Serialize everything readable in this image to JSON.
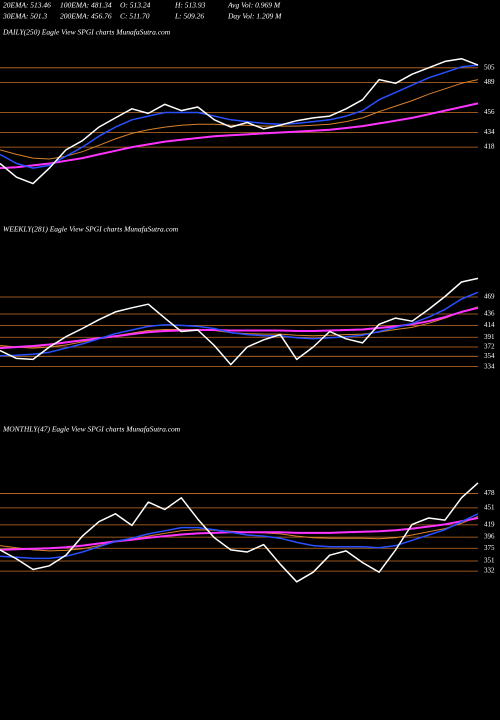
{
  "chart_data": [
    {
      "type": "line",
      "title": "DAILY(250) Eagle View SPGI charts MunafaSutra.com",
      "annotations": [
        "20EMA: 513.46",
        "100EMA: 481.34",
        "O: 513.24",
        "H: 513.93",
        "Avg Vol: 0.969 M",
        "30EMA: 501.3",
        "200EMA: 456.76",
        "C: 511.70",
        "L: 509.26",
        "Day Vol: 1.209 M"
      ],
      "ylim": [
        360,
        530
      ],
      "yticks": [
        505,
        489,
        456,
        434,
        418
      ],
      "grid": true,
      "grid_color": "#c8702a",
      "series": [
        {
          "color": "#d9822b",
          "values": [
            415,
            410,
            406,
            405,
            408,
            413,
            420,
            427,
            433,
            437,
            440,
            442,
            443,
            443,
            442,
            442,
            441,
            441,
            441,
            442,
            443,
            446,
            450,
            457,
            463,
            469,
            476,
            482,
            488,
            492
          ]
        },
        {
          "color": "#ff33ff",
          "values": [
            395,
            396,
            398,
            400,
            403,
            406,
            410,
            414,
            418,
            421,
            424,
            426,
            428,
            430,
            431,
            432,
            433,
            434,
            435,
            436,
            437,
            439,
            441,
            444,
            447,
            450,
            454,
            458,
            462,
            466
          ]
        },
        {
          "color": "#2850ff",
          "values": [
            410,
            400,
            395,
            398,
            408,
            418,
            430,
            440,
            448,
            452,
            456,
            456,
            456,
            452,
            448,
            446,
            444,
            443,
            444,
            446,
            448,
            452,
            458,
            470,
            478,
            486,
            494,
            500,
            506,
            508
          ]
        },
        {
          "color": "#ffffff",
          "values": [
            400,
            385,
            378,
            395,
            415,
            425,
            440,
            450,
            460,
            455,
            465,
            458,
            462,
            448,
            440,
            445,
            438,
            442,
            447,
            450,
            452,
            460,
            470,
            492,
            488,
            498,
            505,
            512,
            515,
            508
          ]
        }
      ]
    },
    {
      "type": "line",
      "title": "WEEKLY(281) Eagle View SPGI charts MunafaSutra.com",
      "ylim": [
        250,
        560
      ],
      "yticks": [
        469,
        436,
        414,
        391,
        372,
        354,
        334
      ],
      "grid": true,
      "grid_color": "#c8702a",
      "series": [
        {
          "color": "#d9822b",
          "values": [
            375,
            372,
            370,
            372,
            376,
            382,
            388,
            394,
            399,
            404,
            406,
            406,
            406,
            404,
            400,
            398,
            397,
            397,
            395,
            394,
            395,
            396,
            397,
            401,
            406,
            410,
            418,
            428,
            440,
            450
          ]
        },
        {
          "color": "#ff33ff",
          "values": [
            370,
            372,
            374,
            377,
            381,
            385,
            389,
            393,
            397,
            401,
            403,
            404,
            405,
            405,
            404,
            404,
            404,
            404,
            403,
            403,
            404,
            405,
            406,
            409,
            412,
            416,
            422,
            430,
            440,
            448
          ]
        },
        {
          "color": "#2850ff",
          "values": [
            355,
            356,
            358,
            362,
            370,
            378,
            388,
            398,
            405,
            412,
            415,
            414,
            412,
            408,
            400,
            396,
            394,
            394,
            390,
            388,
            390,
            392,
            395,
            402,
            410,
            418,
            430,
            445,
            465,
            478
          ]
        },
        {
          "color": "#ffffff",
          "values": [
            365,
            350,
            348,
            372,
            392,
            408,
            425,
            440,
            448,
            455,
            428,
            402,
            405,
            375,
            338,
            372,
            386,
            396,
            348,
            372,
            402,
            388,
            380,
            416,
            428,
            422,
            445,
            470,
            498,
            505
          ]
        }
      ]
    },
    {
      "type": "line",
      "title": "MONTHLY(47) Eagle View SPGI charts MunafaSutra.com",
      "ylim": [
        240,
        560
      ],
      "yticks": [
        478,
        451,
        419,
        396,
        375,
        351,
        332
      ],
      "grid": true,
      "grid_color": "#c8702a",
      "series": [
        {
          "color": "#d9822b",
          "values": [
            380,
            376,
            372,
            370,
            371,
            374,
            380,
            387,
            392,
            398,
            403,
            408,
            410,
            409,
            407,
            405,
            404,
            402,
            398,
            395,
            394,
            394,
            394,
            393,
            395,
            400,
            406,
            412,
            422,
            435
          ]
        },
        {
          "color": "#ff33ff",
          "values": [
            372,
            373,
            374,
            375,
            377,
            380,
            384,
            388,
            391,
            395,
            398,
            401,
            403,
            404,
            405,
            405,
            405,
            405,
            404,
            404,
            404,
            405,
            406,
            407,
            409,
            412,
            416,
            420,
            426,
            432
          ]
        },
        {
          "color": "#2850ff",
          "values": [
            360,
            358,
            356,
            356,
            360,
            368,
            378,
            388,
            394,
            402,
            408,
            414,
            414,
            410,
            405,
            400,
            398,
            394,
            386,
            380,
            378,
            378,
            378,
            376,
            380,
            390,
            400,
            410,
            425,
            440
          ]
        },
        {
          "color": "#ffffff",
          "values": [
            372,
            355,
            335,
            342,
            362,
            398,
            425,
            440,
            418,
            462,
            448,
            470,
            430,
            395,
            372,
            368,
            382,
            345,
            312,
            330,
            362,
            370,
            348,
            330,
            372,
            420,
            432,
            428,
            470,
            498
          ]
        }
      ]
    }
  ]
}
